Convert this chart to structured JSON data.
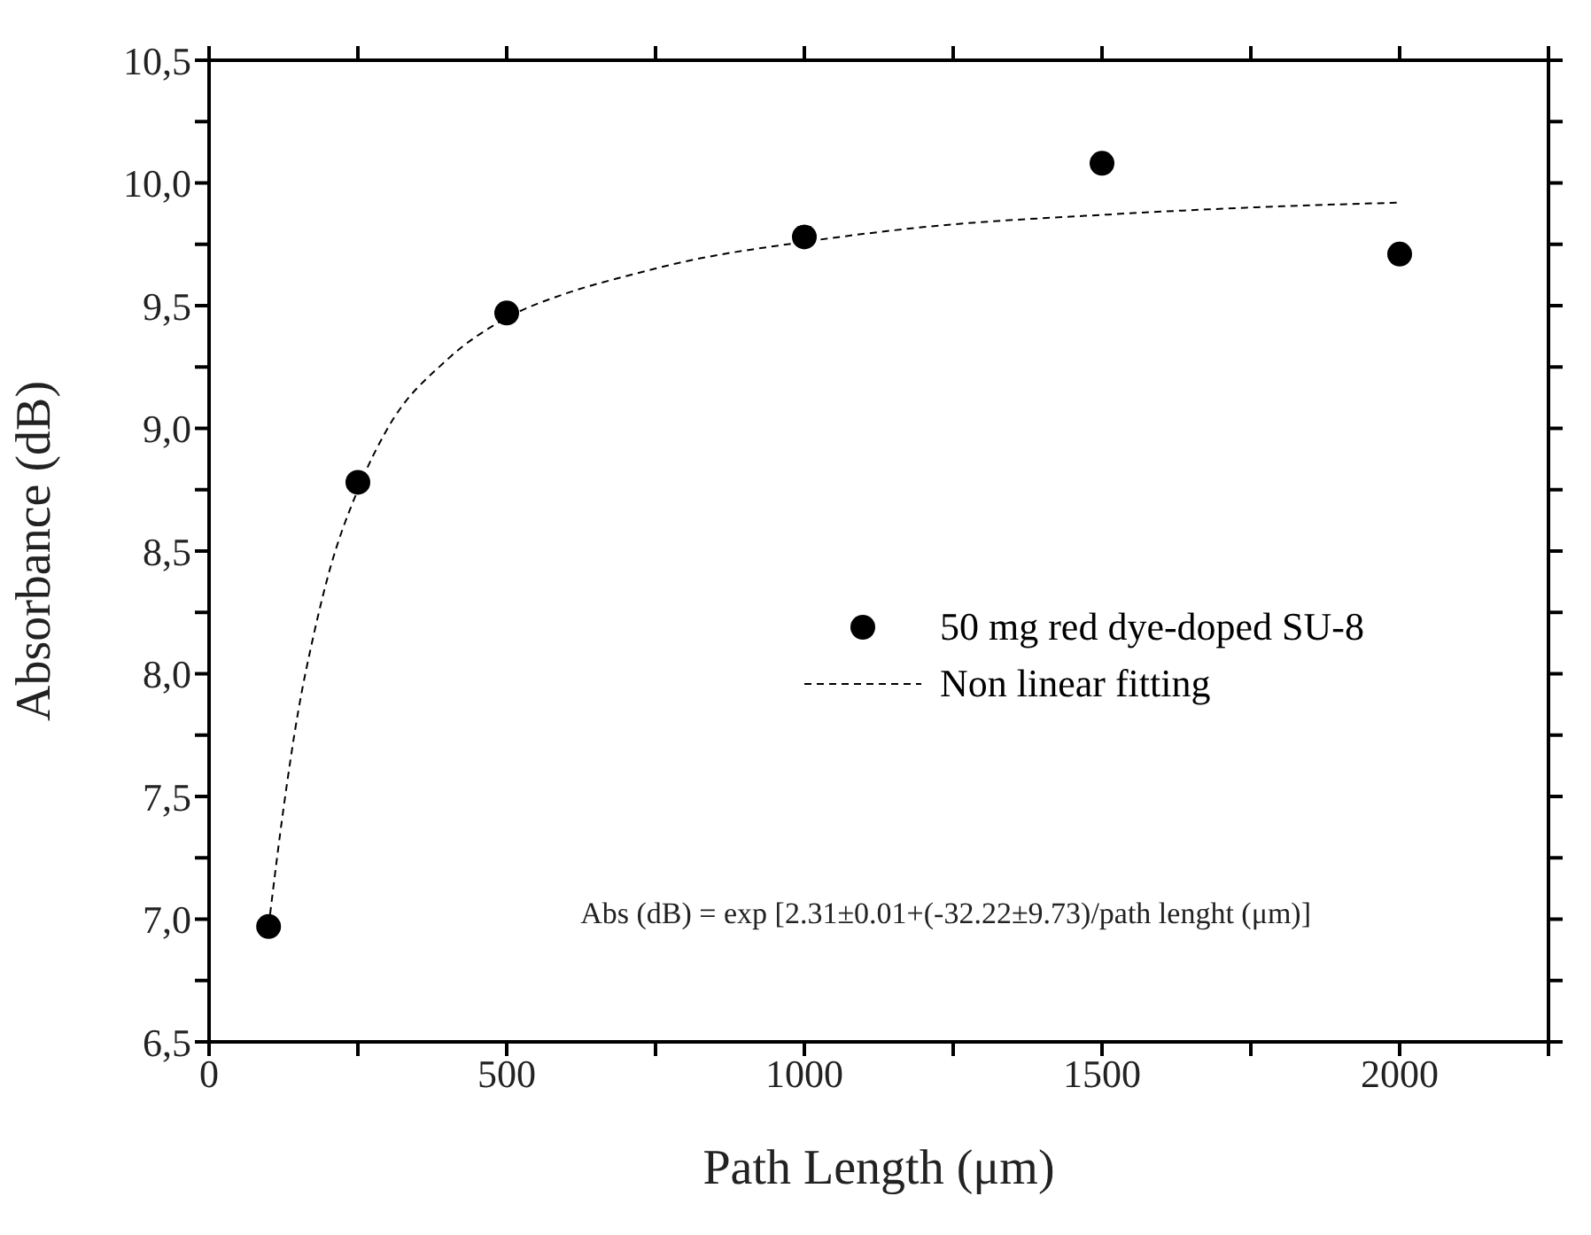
{
  "chart_data": {
    "type": "scatter",
    "xlabel": "Path Length (μm)",
    "ylabel": "Absorbance (dB)",
    "series": [
      {
        "name": "50 mg red dye-doped SU-8",
        "color": "#000000",
        "marker": "circle",
        "x": [
          100,
          250,
          500,
          1000,
          1500,
          2000
        ],
        "values": [
          6.97,
          8.78,
          9.47,
          9.78,
          10.08,
          9.71
        ]
      },
      {
        "name": "Non linear fitting",
        "type": "line",
        "color": "#000000",
        "marker": "none",
        "line_style": "dashed",
        "x": [
          100,
          125,
          150,
          175,
          200,
          250,
          300,
          400,
          500,
          600,
          700,
          800,
          1000,
          1200,
          1500,
          1750,
          2000
        ],
        "values": [
          6.97,
          7.45,
          7.85,
          8.15,
          8.4,
          8.75,
          9.0,
          9.28,
          9.45,
          9.55,
          9.62,
          9.68,
          9.76,
          9.82,
          9.87,
          9.9,
          9.92
        ]
      }
    ],
    "xlim": [
      0,
      2250
    ],
    "xticks": [
      0,
      {
        "value": 250,
        "label": null
      },
      500,
      {
        "value": 750,
        "label": null
      },
      1000,
      {
        "value": 1250,
        "label": null
      },
      1500,
      {
        "value": 1750,
        "label": null
      },
      2000,
      {
        "value": 2250,
        "label": null
      }
    ],
    "ylim": [
      6.5,
      10.5
    ],
    "yticks": [
      {
        "value": 6.5,
        "label": "6,5"
      },
      {
        "value": 6.75,
        "label": null
      },
      {
        "value": 7,
        "label": "7,0"
      },
      {
        "value": 7.25,
        "label": null
      },
      {
        "value": 7.5,
        "label": "7,5"
      },
      {
        "value": 7.75,
        "label": null
      },
      {
        "value": 8,
        "label": "8,0"
      },
      {
        "value": 8.25,
        "label": null
      },
      {
        "value": 8.5,
        "label": "8,5"
      },
      {
        "value": 8.75,
        "label": null
      },
      {
        "value": 9,
        "label": "9,0"
      },
      {
        "value": 9.25,
        "label": null
      },
      {
        "value": 9.5,
        "label": "9,5"
      },
      {
        "value": 9.75,
        "label": null
      },
      {
        "value": 10,
        "label": "10,0"
      },
      {
        "value": 10.25,
        "label": null
      },
      {
        "value": 10.5,
        "label": "10,5"
      }
    ],
    "legend": "right",
    "annotations": [
      "Abs (dB) = exp [2.31±0.01+(-32.22±9.73)/path lenght (μm)]"
    ]
  }
}
